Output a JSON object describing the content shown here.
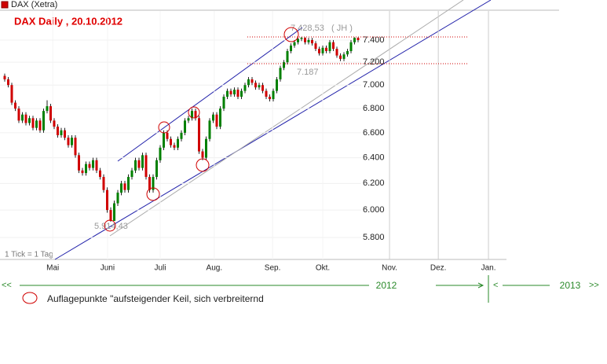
{
  "chart_data": {
    "type": "candlestick",
    "header": "DAX (Xetra)",
    "title": "DAX Daily ,  20.10.2012",
    "note": "1 Tick = 1 Tag",
    "log_scale": true,
    "up_color": "#008000",
    "down_color": "#d00000",
    "open": [
      7080,
      7050,
      7000,
      6850,
      6800,
      6700,
      6750,
      6680,
      6720,
      6640,
      6700,
      6620,
      6780,
      6820,
      6700,
      6650,
      6580,
      6620,
      6560,
      6500,
      6560,
      6420,
      6300,
      6280,
      6350,
      6320,
      6380,
      6300,
      6250,
      6150,
      6000,
      5920,
      6050,
      6130,
      6200,
      6150,
      6250,
      6300,
      6380,
      6320,
      6420,
      6250,
      6150,
      6250,
      6380,
      6480,
      6600,
      6550,
      6500,
      6480,
      6550,
      6600,
      6700,
      6720,
      6780,
      6720,
      6450,
      6400,
      6550,
      6700,
      6750,
      6650,
      6800,
      6900,
      6950,
      6920,
      6960,
      6900,
      6950,
      7000,
      7050,
      7020,
      6980,
      7000,
      6950,
      6900,
      6880,
      6950,
      7050,
      7150,
      7200,
      7300,
      7350,
      7380,
      7410,
      7420,
      7380,
      7400,
      7370,
      7320,
      7280,
      7330,
      7300,
      7380,
      7320,
      7260,
      7230,
      7270,
      7300,
      7380,
      7420
    ],
    "high": [
      7100,
      7070,
      7020,
      6870,
      6820,
      6770,
      6770,
      6740,
      6740,
      6720,
      6720,
      6800,
      6870,
      6840,
      6720,
      6670,
      6640,
      6640,
      6580,
      6580,
      6580,
      6440,
      6320,
      6370,
      6370,
      6400,
      6400,
      6320,
      6270,
      6170,
      6020,
      6070,
      6150,
      6220,
      6220,
      6270,
      6320,
      6400,
      6400,
      6440,
      6440,
      6270,
      6270,
      6400,
      6500,
      6620,
      6620,
      6570,
      6520,
      6570,
      6620,
      6720,
      6740,
      6800,
      6800,
      6740,
      6470,
      6570,
      6720,
      6770,
      6770,
      6820,
      6920,
      6970,
      6970,
      6980,
      6980,
      6970,
      7020,
      7070,
      7070,
      7040,
      7020,
      7020,
      6970,
      6920,
      6970,
      7070,
      7170,
      7220,
      7320,
      7370,
      7400,
      7420,
      7428,
      7425,
      7420,
      7420,
      7390,
      7340,
      7350,
      7350,
      7400,
      7400,
      7340,
      7280,
      7290,
      7320,
      7400,
      7425,
      7425
    ],
    "low": [
      7030,
      6980,
      6830,
      6780,
      6680,
      6680,
      6660,
      6660,
      6620,
      6620,
      6600,
      6600,
      6760,
      6680,
      6630,
      6560,
      6560,
      6540,
      6480,
      6480,
      6400,
      6280,
      6260,
      6260,
      6300,
      6300,
      6280,
      6230,
      6130,
      5980,
      5914,
      5930,
      6030,
      6110,
      6130,
      6130,
      6230,
      6280,
      6300,
      6300,
      6230,
      6130,
      6130,
      6230,
      6360,
      6460,
      6530,
      6480,
      6460,
      6460,
      6530,
      6580,
      6680,
      6700,
      6700,
      6430,
      6380,
      6380,
      6530,
      6680,
      6630,
      6630,
      6780,
      6880,
      6900,
      6900,
      6880,
      6880,
      6930,
      6980,
      7000,
      6960,
      6960,
      6930,
      6880,
      6860,
      6860,
      6930,
      7030,
      7130,
      7180,
      7280,
      7330,
      7360,
      7390,
      7360,
      7360,
      7350,
      7300,
      7260,
      7260,
      7280,
      7280,
      7300,
      7240,
      7210,
      7210,
      7250,
      7280,
      7360,
      7380
    ],
    "close": [
      7050,
      7000,
      6850,
      6800,
      6700,
      6750,
      6680,
      6720,
      6640,
      6700,
      6620,
      6780,
      6820,
      6700,
      6650,
      6580,
      6620,
      6560,
      6500,
      6560,
      6420,
      6300,
      6280,
      6350,
      6320,
      6380,
      6300,
      6250,
      6150,
      6000,
      5920,
      6050,
      6130,
      6200,
      6150,
      6250,
      6300,
      6380,
      6320,
      6420,
      6250,
      6150,
      6250,
      6380,
      6480,
      6600,
      6550,
      6500,
      6480,
      6550,
      6600,
      6700,
      6720,
      6780,
      6720,
      6450,
      6400,
      6550,
      6700,
      6750,
      6650,
      6800,
      6900,
      6950,
      6920,
      6960,
      6900,
      6950,
      7000,
      7050,
      7020,
      6980,
      7000,
      6950,
      6900,
      6880,
      6950,
      7050,
      7150,
      7200,
      7300,
      7350,
      7380,
      7410,
      7420,
      7380,
      7400,
      7370,
      7320,
      7280,
      7330,
      7300,
      7380,
      7320,
      7260,
      7230,
      7270,
      7300,
      7380,
      7420,
      7400
    ],
    "ylim": [
      5645,
      7670
    ],
    "yticks": [
      {
        "value": 5800,
        "label": "5.800"
      },
      {
        "value": 6000,
        "label": "6.000"
      },
      {
        "value": 6200,
        "label": "6.200"
      },
      {
        "value": 6400,
        "label": "6.400"
      },
      {
        "value": 6600,
        "label": "6.600"
      },
      {
        "value": 6800,
        "label": "6.800"
      },
      {
        "value": 7000,
        "label": "7.000"
      },
      {
        "value": 7200,
        "label": "7.200"
      },
      {
        "value": 7400,
        "label": "7.400"
      }
    ],
    "xlim": [
      -1.33,
      142
    ],
    "xticks": [
      {
        "value": 13.6,
        "label": "Mai"
      },
      {
        "value": 29.1,
        "label": "Juni"
      },
      {
        "value": 44,
        "label": "Juli"
      },
      {
        "value": 59.3,
        "label": "Aug."
      },
      {
        "value": 75.8,
        "label": "Sep."
      },
      {
        "value": 90,
        "label": "Okt."
      },
      {
        "value": 108.9,
        "label": "Nov."
      },
      {
        "value": 122.7,
        "label": "Dez."
      },
      {
        "value": 136.9,
        "label": "Jan."
      }
    ],
    "annotations": [
      {
        "value": 7428.53,
        "label": "7.428,53",
        "note": "( JH )"
      },
      {
        "value": 7187,
        "label": "7.187"
      },
      {
        "value": 5914.43,
        "label": "5.914,43"
      }
    ],
    "timeline": {
      "left": "<<",
      "year1": "2012",
      "mid": "<",
      "year2": "2013",
      "right": ">>"
    },
    "legend": "Auflagepunkte \"aufsteigender   Keil,  sich verbreiternd"
  }
}
